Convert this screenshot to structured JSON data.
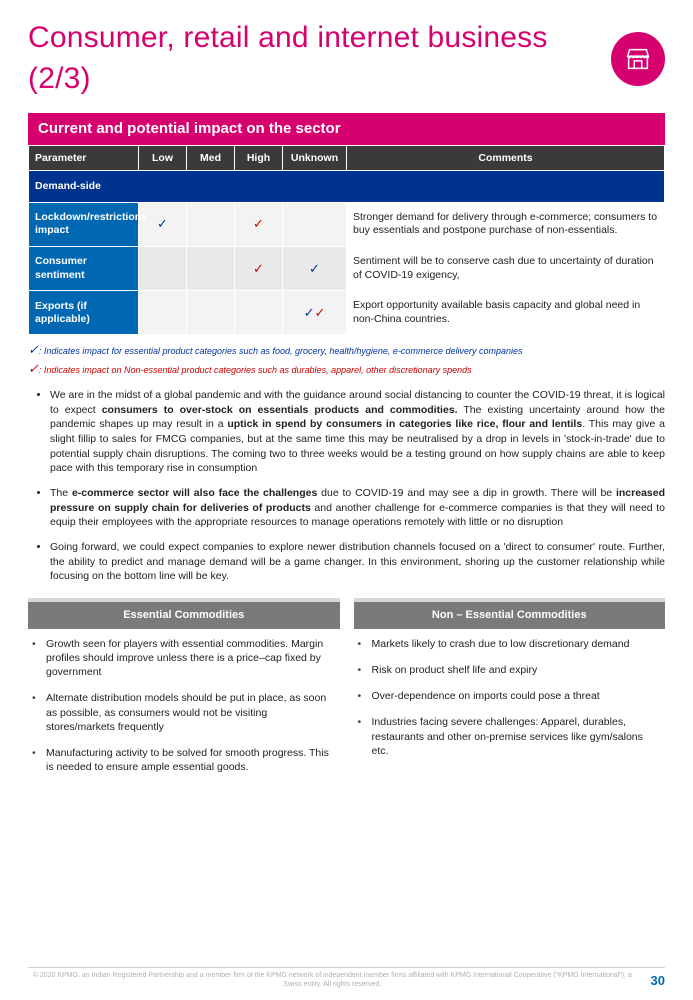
{
  "title": "Consumer, retail and internet business (2/3)",
  "section_title": "Current and potential impact on the sector",
  "headers": {
    "param": "Parameter",
    "low": "Low",
    "med": "Med",
    "high": "High",
    "unknown": "Unknown",
    "comments": "Comments"
  },
  "subhead": "Demand-side",
  "rows": [
    {
      "label": "Lockdown/restrictions impact",
      "low": "blue",
      "med": "",
      "high": "red",
      "unknown": "",
      "comment": "Stronger demand for delivery through e-commerce; consumers to buy essentials and postpone purchase of non-essentials."
    },
    {
      "label": "Consumer sentiment",
      "low": "",
      "med": "",
      "high": "red",
      "unknown": "blue",
      "comment": "Sentiment will be to conserve cash due to uncertainty of duration of COVID-19 exigency,"
    },
    {
      "label": "Exports (if applicable)",
      "low": "",
      "med": "",
      "high": "",
      "unknown": "both",
      "comment": "Export opportunity available basis capacity and global need in non-China countries."
    }
  ],
  "legend": {
    "blue": ": Indicates impact for essential product categories such as food, grocery, health/hygiene, e-commerce delivery companies",
    "red": ": Indicates impact on Non-essential product categories such as durables, apparel, other discretionary spends"
  },
  "bullets": [
    {
      "pre": "We are in the midst of a global pandemic and with the guidance around social distancing to counter the COVID-19 threat, it is logical to expect ",
      "b1": "consumers to over-stock on essentials products and commodities.",
      "mid": " The existing uncertainty around how the pandemic shapes up may result in a ",
      "b2": "uptick in spend by consumers in categories like rice, flour and lentils",
      "post": ". This may give a slight fillip to sales for FMCG companies, but at the same time this may be neutralised by a drop in levels in 'stock-in-trade' due to potential supply chain disruptions. The coming two to three weeks would be a testing ground on how supply chains are able to keep pace with this temporary rise in consumption"
    },
    {
      "pre": "The ",
      "b1": "e-commerce sector will also face the challenges",
      "mid": " due to COVID-19 and may see a dip in growth. There will be ",
      "b2": "increased pressure on supply chain for deliveries of products",
      "post": " and another challenge for e-commerce companies is that they will need to equip their employees with the appropriate resources to manage operations remotely with little or no disruption"
    },
    {
      "pre": "Going forward, we could expect companies to explore newer distribution channels focused on a 'direct to consumer' route. Further, the ability to predict and manage demand will be a game changer. In this environment, shoring up the customer relationship while focusing on the bottom line will be key.",
      "b1": "",
      "mid": "",
      "b2": "",
      "post": ""
    }
  ],
  "col_left": {
    "title": "Essential Commodities",
    "items": [
      "Growth seen for players with essential commodities. Margin profiles should improve unless there is a price–cap fixed by government",
      "Alternate distribution models should be put in place, as soon as possible, as consumers would not be visiting stores/markets frequently",
      "Manufacturing activity to be solved for smooth progress. This is needed to ensure ample essential goods."
    ]
  },
  "col_right": {
    "title": "Non – Essential Commodities",
    "items": [
      "Markets likely to crash due to low discretionary demand",
      "Risk on product shelf life and expiry",
      "Over-dependence on imports could pose a threat",
      "Industries facing severe challenges: Apparel, durables, restaurants and other on-premise services like gym/salons etc."
    ]
  },
  "footer": "© 2020 KPMG, an Indian Registered Partnership and a member firm of the KPMG network of independent member firms affiliated with KPMG International Cooperative (\"KPMG International\"), a Swiss entity. All rights reserved.",
  "page_number": "30"
}
